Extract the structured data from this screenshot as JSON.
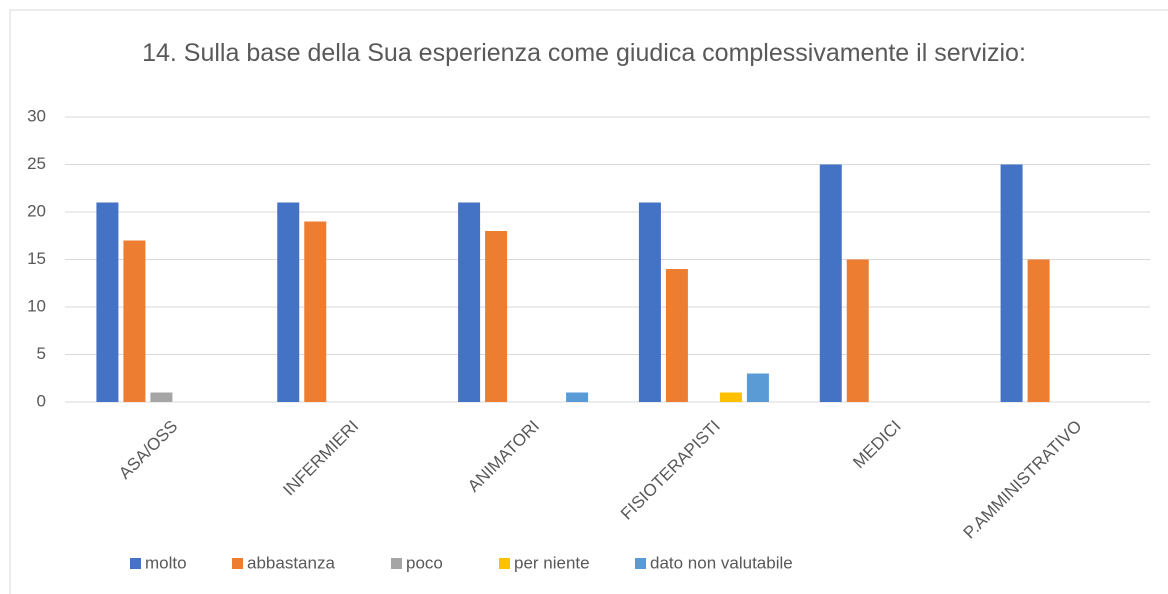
{
  "chart_data": {
    "type": "bar",
    "title": "14. Sulla base della Sua esperienza come giudica complessivamente il servizio:",
    "categories": [
      "ASA/OSS",
      "INFERMIERI",
      "ANIMATORI",
      "FISIOTERAPISTI",
      "MEDICI",
      "P.AMMINISTRATIVO"
    ],
    "series": [
      {
        "name": "molto",
        "color": "#4472c4",
        "values": [
          21,
          21,
          21,
          21,
          25,
          25
        ]
      },
      {
        "name": "abbastanza",
        "color": "#ed7d31",
        "values": [
          17,
          19,
          18,
          14,
          15,
          15
        ]
      },
      {
        "name": "poco",
        "color": "#a5a5a5",
        "values": [
          1,
          0,
          0,
          0,
          0,
          0
        ]
      },
      {
        "name": "per niente",
        "color": "#ffc000",
        "values": [
          0,
          0,
          0,
          1,
          0,
          0
        ]
      },
      {
        "name": "dato non valutabile",
        "color": "#5b9bd5",
        "values": [
          0,
          0,
          1,
          3,
          0,
          0
        ]
      }
    ],
    "ylim": [
      0,
      30
    ],
    "yticks": [
      0,
      5,
      10,
      15,
      20,
      25,
      30
    ],
    "grid": true,
    "legend": "bottom"
  }
}
